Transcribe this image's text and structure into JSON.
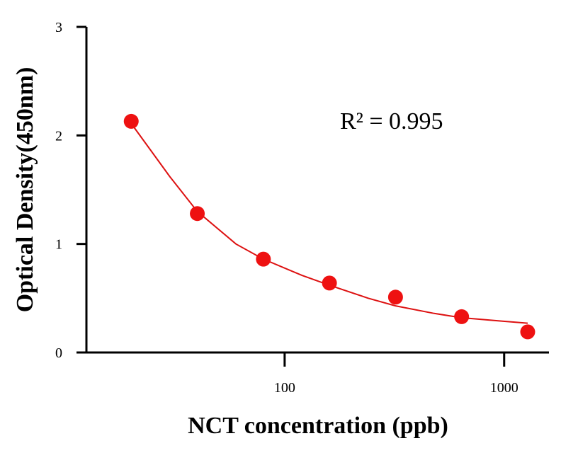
{
  "chart_data": {
    "type": "scatter",
    "xlabel": "NCT concentration (ppb)",
    "ylabel": "Optical Density(450nm)",
    "x_scale": "log",
    "xlim": [
      12.5,
      1600
    ],
    "ylim": [
      0,
      3
    ],
    "x_ticks": [
      100,
      1000
    ],
    "x_tick_labels": [
      "100",
      "1000"
    ],
    "y_ticks": [
      0,
      1,
      2,
      3
    ],
    "y_tick_labels": [
      "0",
      "1",
      "2",
      "3"
    ],
    "grid": false,
    "series": [
      {
        "color": "#ee1111",
        "points": [
          {
            "x": 20,
            "y": 2.13
          },
          {
            "x": 40,
            "y": 1.28
          },
          {
            "x": 80,
            "y": 0.86
          },
          {
            "x": 160,
            "y": 0.64
          },
          {
            "x": 320,
            "y": 0.51
          },
          {
            "x": 640,
            "y": 0.33
          },
          {
            "x": 1280,
            "y": 0.19
          }
        ]
      }
    ],
    "fit_curve": {
      "color": "#dd1111",
      "points": [
        {
          "x": 20,
          "y": 2.11
        },
        {
          "x": 30,
          "y": 1.62
        },
        {
          "x": 40,
          "y": 1.3
        },
        {
          "x": 60,
          "y": 1.0
        },
        {
          "x": 80,
          "y": 0.86
        },
        {
          "x": 120,
          "y": 0.71
        },
        {
          "x": 160,
          "y": 0.62
        },
        {
          "x": 240,
          "y": 0.5
        },
        {
          "x": 320,
          "y": 0.43
        },
        {
          "x": 480,
          "y": 0.36
        },
        {
          "x": 640,
          "y": 0.32
        },
        {
          "x": 960,
          "y": 0.29
        },
        {
          "x": 1280,
          "y": 0.27
        }
      ]
    },
    "annotation": "R² = 0.995"
  }
}
